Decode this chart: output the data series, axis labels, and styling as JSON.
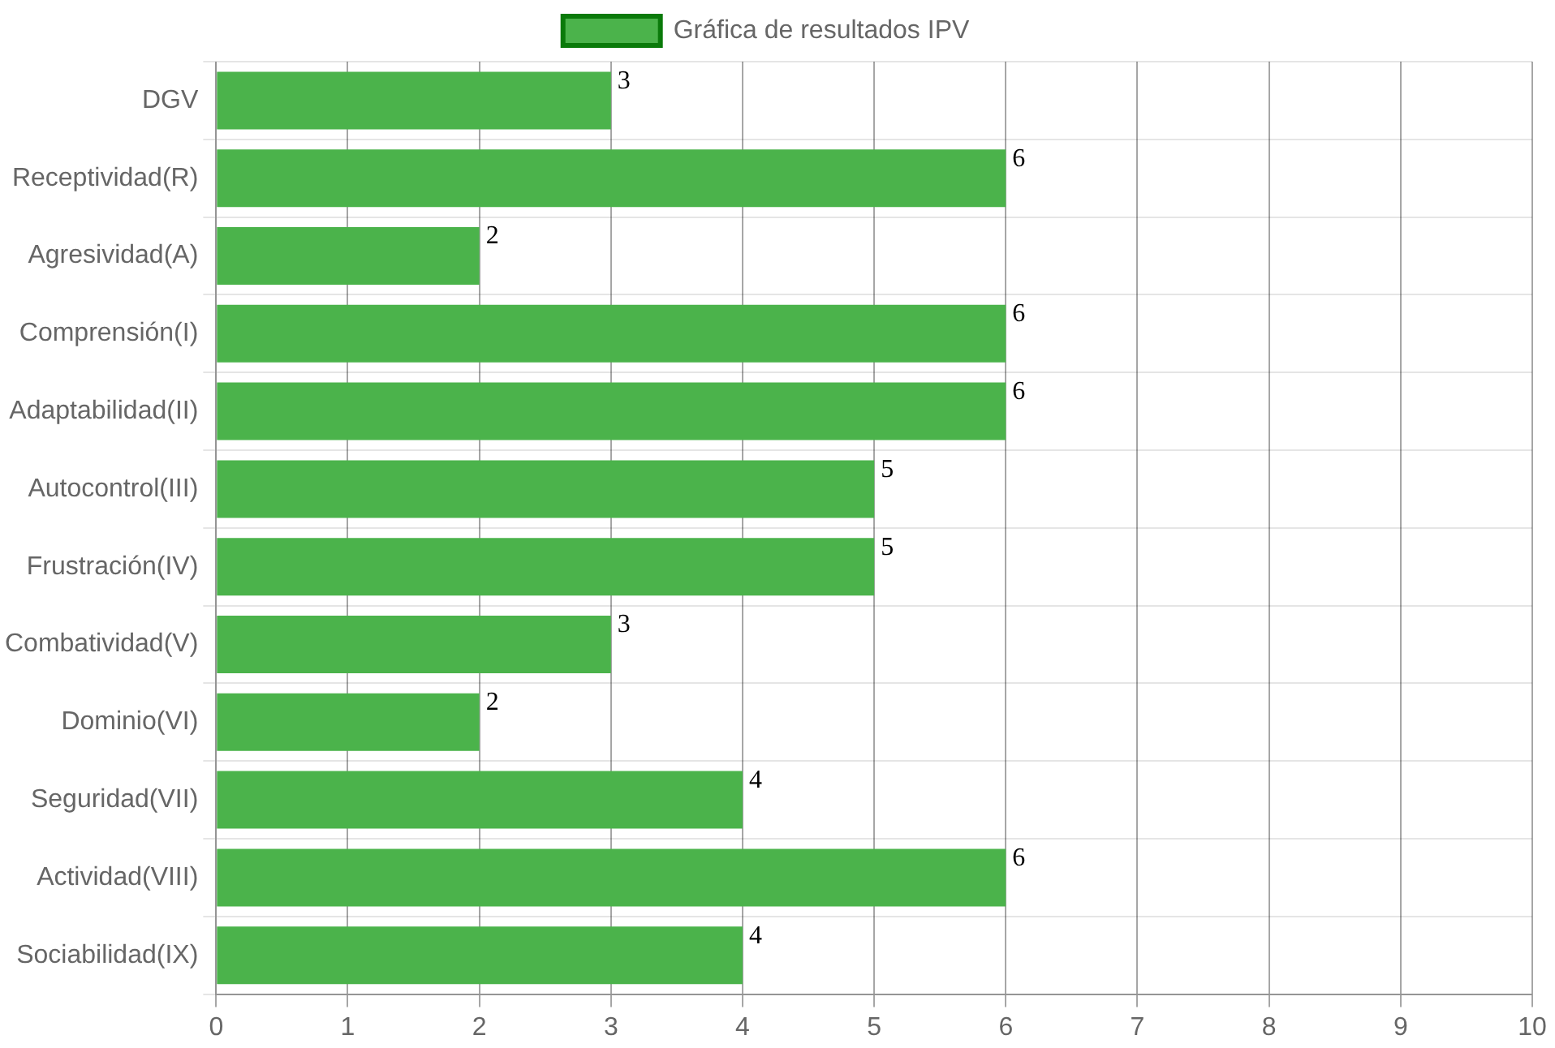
{
  "chart_data": {
    "type": "bar",
    "orientation": "horizontal",
    "categories": [
      "DGV",
      "Receptividad(R)",
      "Agresividad(A)",
      "Comprensión(I)",
      "Adaptabilidad(II)",
      "Autocontrol(III)",
      "Frustración(IV)",
      "Combatividad(V)",
      "Dominio(VI)",
      "Seguridad(VII)",
      "Actividad(VIII)",
      "Sociabilidad(IX)"
    ],
    "series": [
      {
        "name": "Gráfica de resultados IPV",
        "color": "#4bb34b",
        "values": [
          3,
          6,
          2,
          6,
          6,
          5,
          5,
          3,
          2,
          4,
          6,
          4
        ]
      }
    ],
    "xlim": [
      0,
      10
    ],
    "xticks": [
      0,
      1,
      2,
      3,
      4,
      5,
      6,
      7,
      8,
      9,
      10
    ],
    "grid": true,
    "legend": "top",
    "data_labels": true
  }
}
